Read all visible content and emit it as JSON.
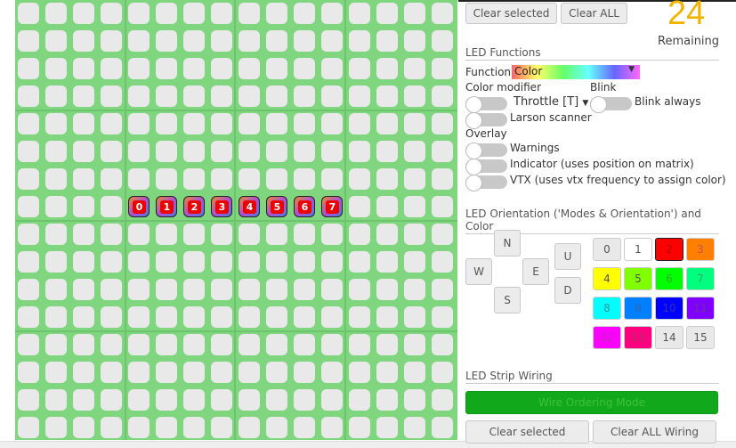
{
  "grid": {
    "rows": 16,
    "cols": 16,
    "selected_row": 7,
    "selected_start_col": 4,
    "wire_numbers": [
      "0",
      "1",
      "2",
      "3",
      "4",
      "5",
      "6",
      "7"
    ]
  },
  "toolbar": {
    "clear_selected": "Clear selected",
    "clear_all": "Clear ALL"
  },
  "remaining": {
    "count": "24",
    "label": "Remaining",
    "color": "#f0b400"
  },
  "functions": {
    "header": "LED Functions",
    "function_label": "Function",
    "function_value": "Color",
    "color_modifier_label": "Color modifier",
    "throttle_value": "Throttle [T]",
    "blink_label": "Blink",
    "blink_always": "Blink always",
    "larson": "Larson scanner",
    "overlay_label": "Overlay",
    "warnings": "Warnings",
    "indicator": "Indicator (uses position on matrix)",
    "vtx": "VTX (uses vtx frequency to assign color)"
  },
  "orientation": {
    "header": "LED Orientation ('Modes & Orientation') and Color",
    "directions": [
      "N",
      "W",
      "E",
      "S",
      "U",
      "D"
    ],
    "colors": [
      {
        "label": "0",
        "bg": "#e9e9e9",
        "fg": "#555"
      },
      {
        "label": "1",
        "bg": "#ffffff",
        "fg": "#555"
      },
      {
        "label": "2",
        "bg": "#ff0000",
        "fg": "#b00"
      },
      {
        "label": "3",
        "bg": "#ff7f00",
        "fg": "#b55"
      },
      {
        "label": "4",
        "bg": "#ffff00",
        "fg": "#555"
      },
      {
        "label": "5",
        "bg": "#7fff00",
        "fg": "#555"
      },
      {
        "label": "6",
        "bg": "#00ff00",
        "fg": "#3a3"
      },
      {
        "label": "7",
        "bg": "#00ff7f",
        "fg": "#3a6"
      },
      {
        "label": "8",
        "bg": "#00ffff",
        "fg": "#399"
      },
      {
        "label": "9",
        "bg": "#007fff",
        "fg": "#36a"
      },
      {
        "label": "10",
        "bg": "#0000ff",
        "fg": "#33a"
      },
      {
        "label": "11",
        "bg": "#7f00ff",
        "fg": "#639"
      },
      {
        "label": "12",
        "bg": "#ff00ff",
        "fg": "#a3a"
      },
      {
        "label": "13",
        "bg": "#ff007f",
        "fg": "#a36"
      },
      {
        "label": "14",
        "bg": "#e9e9e9",
        "fg": "#555"
      },
      {
        "label": "15",
        "bg": "#e9e9e9",
        "fg": "#555"
      }
    ],
    "active_color": "2"
  },
  "wiring": {
    "header": "LED Strip Wiring",
    "wire_mode": "Wire Ordering Mode",
    "clear_selected": "Clear selected",
    "clear_all": "Clear ALL Wiring",
    "wire_color": "#12a81c"
  }
}
